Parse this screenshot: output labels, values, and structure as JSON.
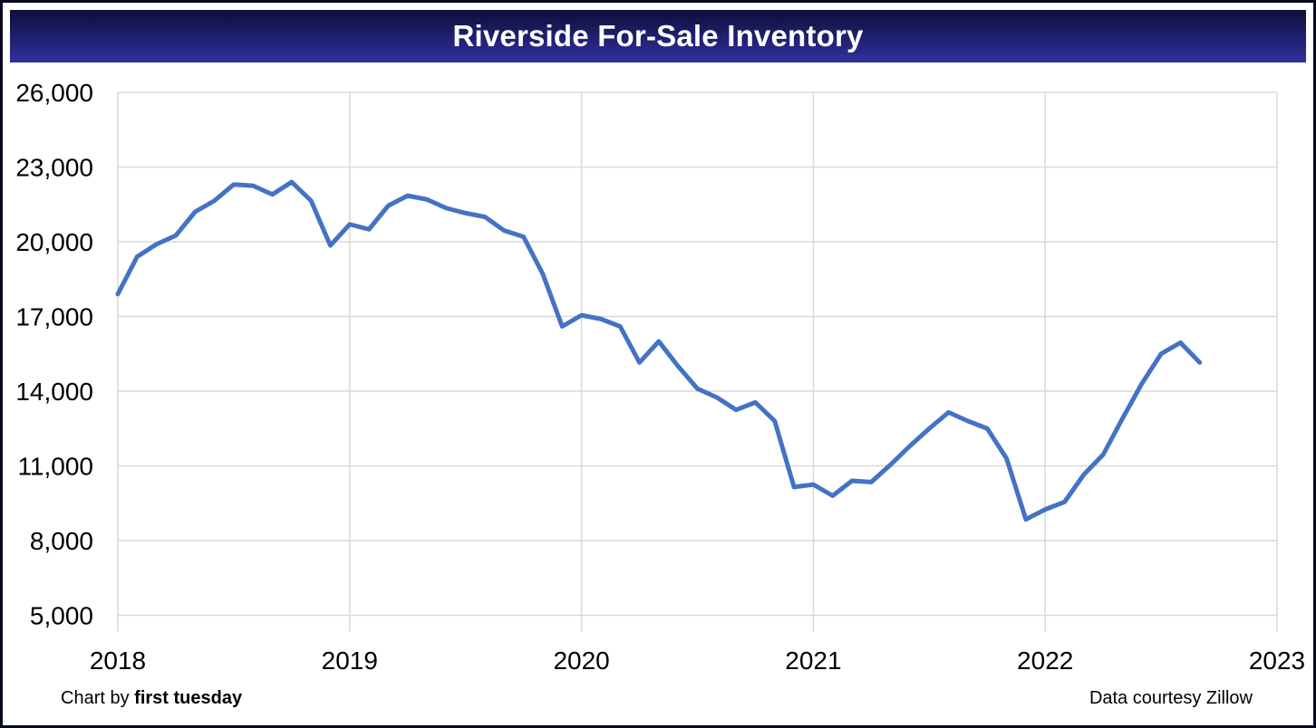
{
  "header": {
    "title": "Riverside For-Sale Inventory",
    "banner_top_color": "#0e0e3c",
    "banner_bottom_color": "#30309f",
    "title_color": "#ffffff"
  },
  "footer": {
    "credit_prefix": "Chart by ",
    "credit_brand": "first tuesday",
    "source": "Data courtesy Zillow"
  },
  "chart_data": {
    "type": "line",
    "title": "Riverside For-Sale Inventory",
    "xlabel": "",
    "ylabel": "",
    "x_start": "2018-01",
    "x_end": "2022-09",
    "frequency": "monthly",
    "x_tick_labels": [
      "2018",
      "2019",
      "2020",
      "2021",
      "2022",
      "2023"
    ],
    "y_tick_labels": [
      "5,000",
      "8,000",
      "11,000",
      "14,000",
      "17,000",
      "20,000",
      "23,000",
      "26,000"
    ],
    "ylim": [
      5000,
      26000
    ],
    "y_step": 3000,
    "grid": true,
    "grid_color": "#d9d9d9",
    "line_color": "#4472C4",
    "legend_position": "none",
    "series": [
      {
        "name": "Riverside for-sale inventory",
        "values": [
          17900,
          19400,
          19900,
          20250,
          21200,
          21650,
          22300,
          22250,
          21900,
          22400,
          21650,
          19850,
          20700,
          20500,
          21450,
          21850,
          21700,
          21350,
          21150,
          21000,
          20450,
          20200,
          18700,
          16600,
          17050,
          16900,
          16600,
          15150,
          16000,
          15000,
          14100,
          13750,
          13250,
          13550,
          12800,
          10150,
          10250,
          9800,
          10400,
          10350,
          11050,
          11800,
          12500,
          13150,
          12800,
          12500,
          11300,
          8850,
          9250,
          9550,
          10650,
          11450,
          12900,
          14300,
          15500,
          15950,
          15150
        ]
      }
    ]
  }
}
